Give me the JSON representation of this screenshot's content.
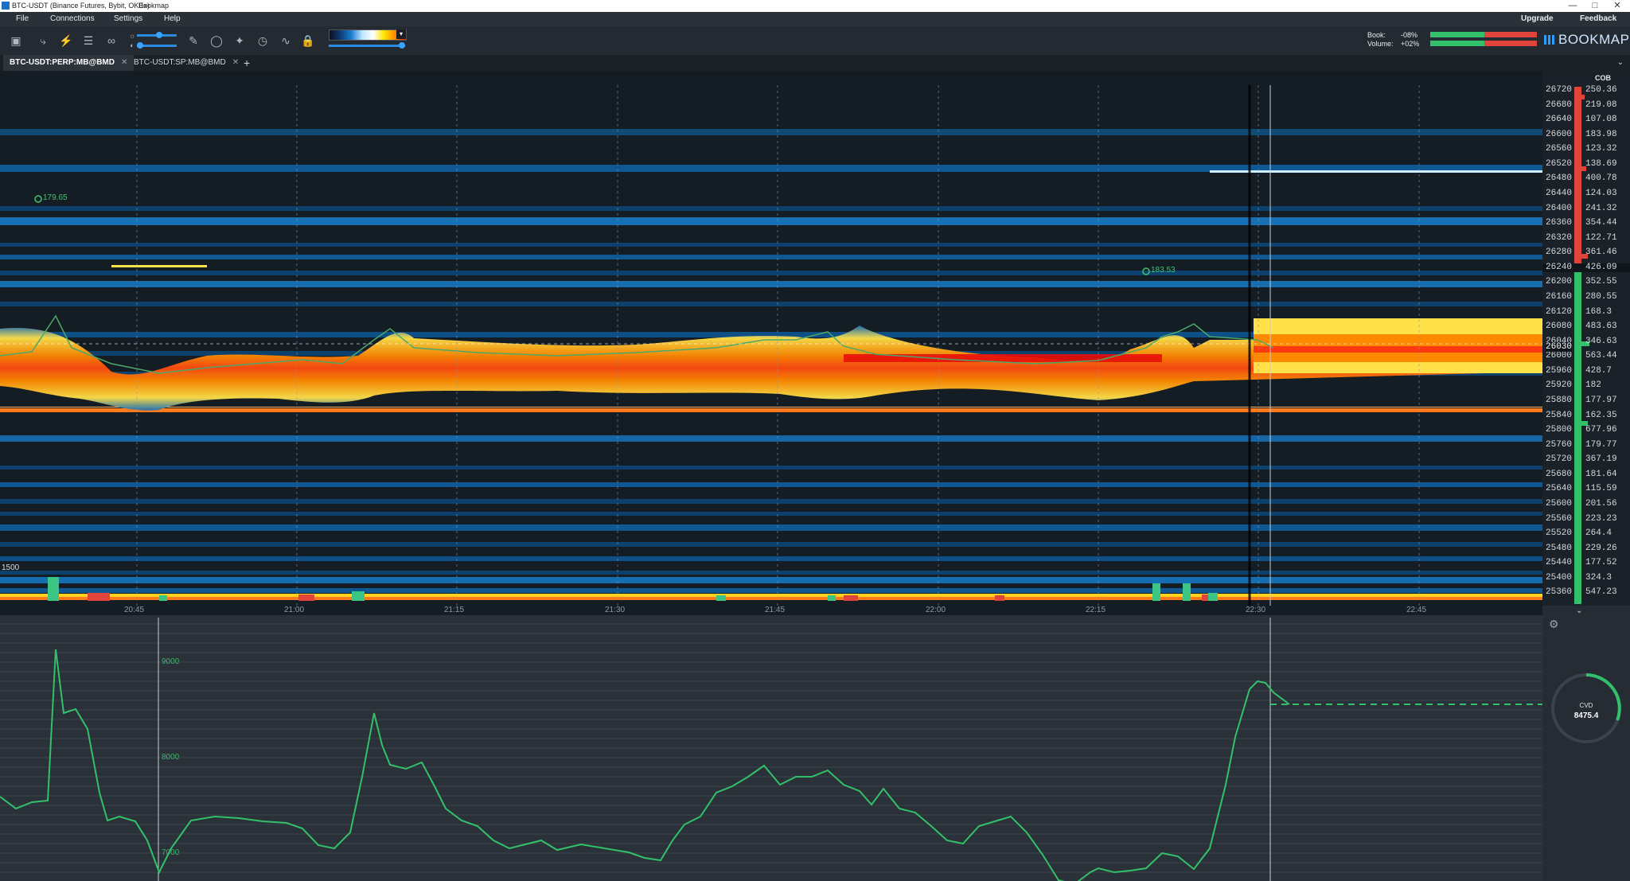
{
  "window": {
    "title": "BTC-USDT (Binance Futures, Bybit, OKEx)",
    "app_name": "Bookmap"
  },
  "menu": {
    "items": [
      "File",
      "Connections",
      "Settings",
      "Help"
    ],
    "upgrade": "Upgrade",
    "feedback": "Feedback"
  },
  "stats": {
    "book_label": "Book:",
    "book_value": "-08%",
    "volume_label": "Volume:",
    "volume_value": "+02%"
  },
  "brand": {
    "logo": "BOOKMAP"
  },
  "tabs": [
    {
      "label": "BTC-USDT:PERP:MB@BMD",
      "active": true
    },
    {
      "label": "BTC-USDT:SP:MB@BMD",
      "active": false
    }
  ],
  "heatmap": {
    "cob_header": "COB",
    "prices": [
      "26720",
      "26680",
      "26640",
      "26600",
      "26560",
      "26520",
      "26480",
      "26440",
      "26400",
      "26360",
      "26320",
      "26280",
      "26240",
      "26200",
      "26160",
      "26120",
      "26080",
      "26040",
      "26000",
      "25960",
      "25920",
      "25880",
      "25840",
      "25800",
      "25760",
      "25720",
      "25680",
      "25640",
      "25600",
      "25560",
      "25520",
      "25480",
      "25440",
      "25400",
      "25360"
    ],
    "cob_values": [
      "250.36",
      "219.08",
      "107.08",
      "183.98",
      "123.32",
      "138.69",
      "400.78",
      "124.03",
      "241.32",
      "354.44",
      "122.71",
      "361.46",
      "426.09",
      "352.55",
      "280.55",
      "168.3",
      "483.63",
      "346.63",
      "563.44",
      "428.7",
      "182",
      "177.97",
      "162.35",
      "677.96",
      "179.77",
      "367.19",
      "181.64",
      "115.59",
      "201.56",
      "223.23",
      "264.4",
      "229.26",
      "177.52",
      "324.3",
      "547.23"
    ],
    "current_price": "26030",
    "marker_left": "179.65",
    "marker_right": "183.53",
    "volume_scale_label": "1500",
    "time_labels": [
      "20:45",
      "21:00",
      "21:15",
      "21:30",
      "21:45",
      "22:00",
      "22:15",
      "22:30",
      "22:45"
    ]
  },
  "cvd": {
    "label": "CVD",
    "value": "8475.4",
    "y_labels": [
      "9000",
      "8000",
      "7000"
    ],
    "color": "#33c06a"
  },
  "colors": {
    "accent": "#2e9cff",
    "buy": "#33c06a",
    "sell": "#e0443a"
  }
}
